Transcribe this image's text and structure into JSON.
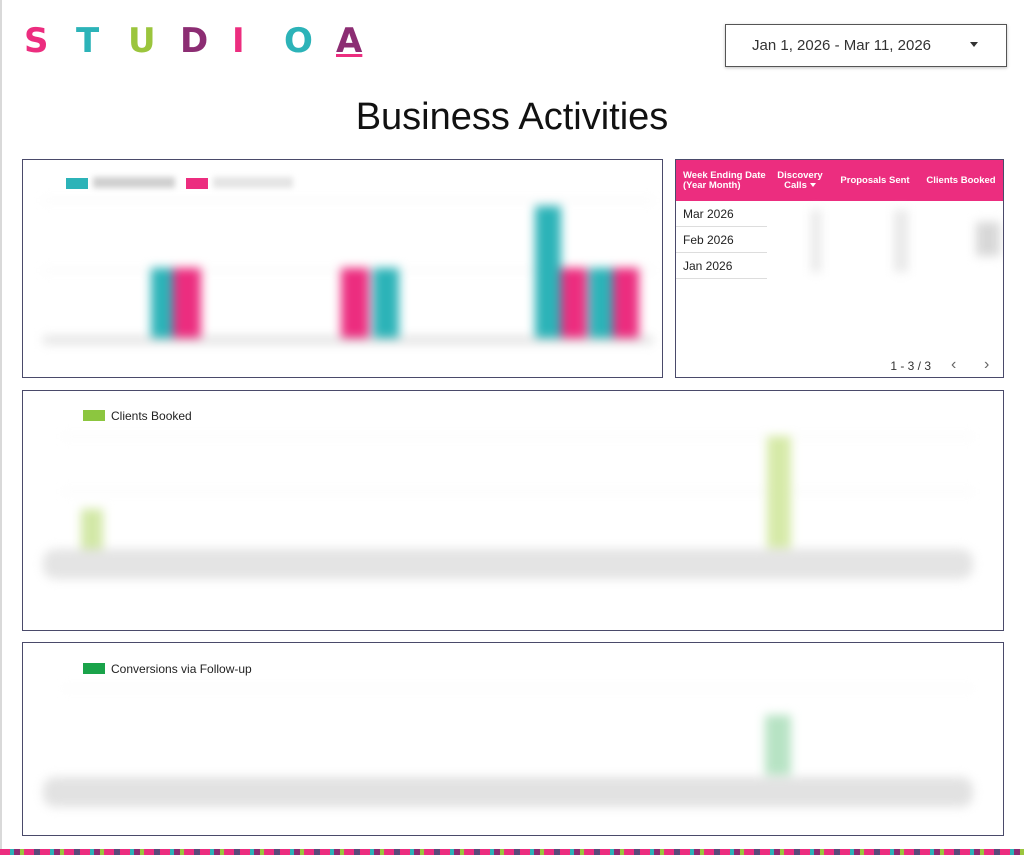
{
  "logo": {
    "letters": [
      "S",
      "T",
      "U",
      "D",
      "I",
      "O",
      "A"
    ],
    "colors": [
      "#ec2d7f",
      "#2cb3b8",
      "#9bc53d",
      "#8c2d73",
      "#ec2d7f",
      "#2cb3b8",
      "#8c2d73"
    ]
  },
  "date_range": {
    "value": "Jan 1, 2026 - Mar 11, 2026",
    "icon": "chevron-down-icon"
  },
  "page_title": "Business Activities",
  "colors": {
    "series_teal": "#2cb3b8",
    "series_pink": "#ec2d7f",
    "clients_booked": "#8cc63f",
    "conversions": "#1aa34a",
    "table_header": "#ec2d7f"
  },
  "table": {
    "headers": [
      "Week Ending Date (Year Month)",
      "Discovery Calls",
      "Proposals Sent",
      "Clients Booked"
    ],
    "rows": [
      {
        "label": "Mar 2026"
      },
      {
        "label": "Feb 2026"
      },
      {
        "label": "Jan 2026"
      }
    ],
    "pagination": "1 - 3 / 3",
    "sort_icon": "caret-down-icon",
    "prev_icon": "chevron-left-icon",
    "next_icon": "chevron-right-icon"
  },
  "charts": {
    "clients_booked_legend": "Clients Booked",
    "conversions_legend": "Conversions via Follow-up"
  }
}
